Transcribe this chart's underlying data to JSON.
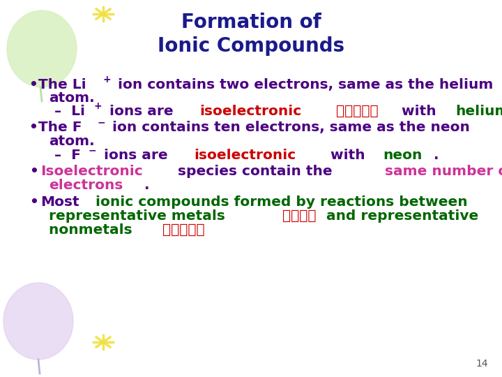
{
  "title_line1": "Formation of",
  "title_line2": "Ionic Compounds",
  "title_color": "#1a1a8c",
  "background_color": "#ffffff",
  "page_number": "14",
  "text_dark": "#4b0082",
  "text_green": "#006600",
  "text_red": "#cc0000",
  "text_pink": "#cc3399",
  "font_size_title": 20,
  "font_size_body": 14.5
}
